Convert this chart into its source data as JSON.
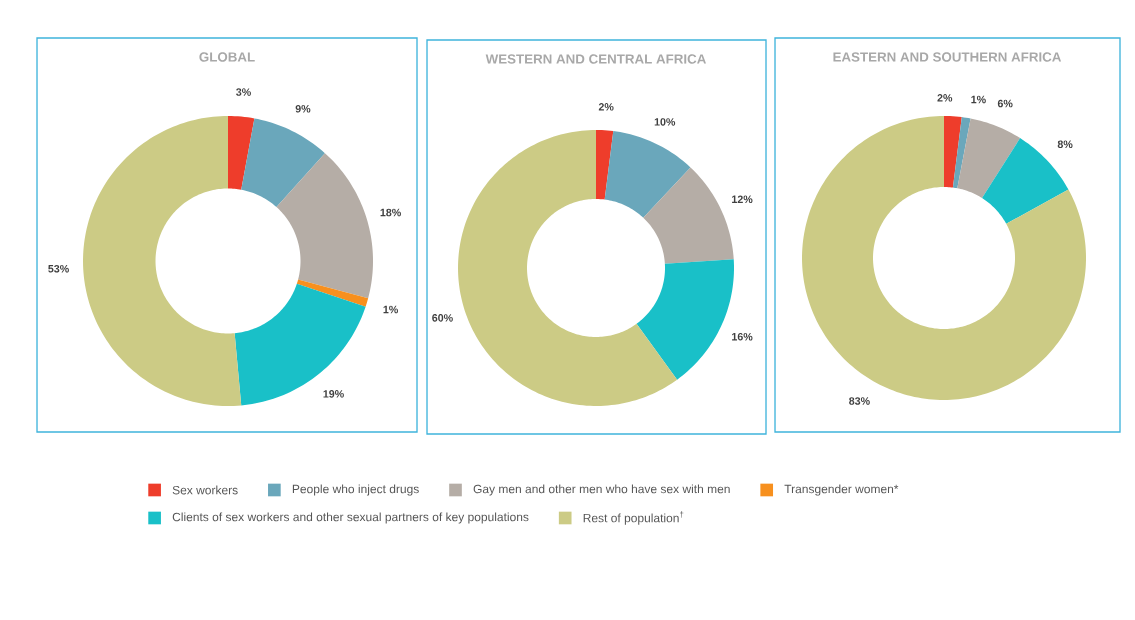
{
  "chart_data": [
    {
      "type": "donut",
      "title": "GLOBAL",
      "categories": [
        "Sex workers",
        "People who inject drugs",
        "Gay men and other men who have sex with men",
        "Transgender women*",
        "Clients of sex workers and other sexual partners of key populations",
        "Rest of population$^{†}$"
      ],
      "values": [
        3,
        9,
        18,
        1,
        19,
        53
      ],
      "value_labels": [
        "3%",
        "9%",
        "18%",
        "1%",
        "19%",
        "53%"
      ],
      "colors": [
        "#ee3d2b",
        "#6aa7bb",
        "#b5ada6",
        "#f7901e",
        "#19c0c8",
        "#cccb85"
      ],
      "legend": "bottom"
    },
    {
      "type": "donut",
      "title": "WESTERN AND CENTRAL AFRICA",
      "values": [
        2,
        10,
        12,
        null,
        16,
        60
      ],
      "value_labels": [
        "2%",
        "10%",
        "12%",
        null,
        "16%",
        "60%"
      ],
      "colors": [
        "#ee3d2b",
        "#6aa7bb",
        "#b5ada6",
        "#f7901e",
        "#19c0c8",
        "#cccb85"
      ]
    },
    {
      "type": "donut",
      "title": "EASTERN AND SOUTHERN AFRICA",
      "values": [
        2,
        1,
        6,
        null,
        8,
        83
      ],
      "value_labels": [
        "2%",
        "1%",
        "6%",
        null,
        "8%",
        "83%"
      ],
      "colors": [
        "#ee3d2b",
        "#6aa7bb",
        "#b5ada6",
        "#f7901e",
        "#19c0c8",
        "#cccb85"
      ]
    }
  ]
}
